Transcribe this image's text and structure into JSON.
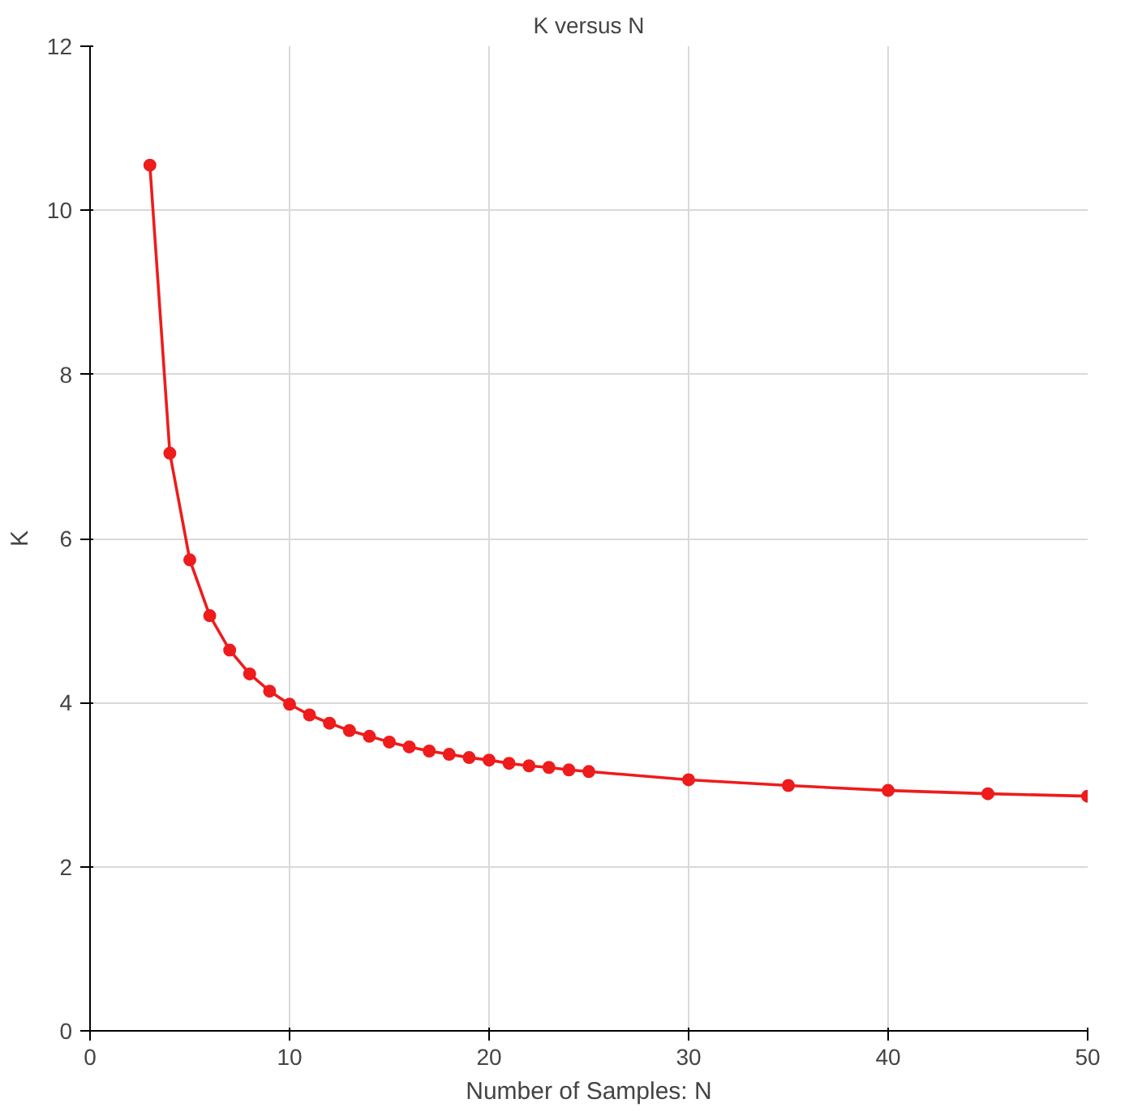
{
  "chart_data": {
    "type": "line",
    "title": "K versus N",
    "xlabel": "Number of Samples: N",
    "ylabel": "K",
    "x": [
      3,
      4,
      5,
      6,
      7,
      8,
      9,
      10,
      11,
      12,
      13,
      14,
      15,
      16,
      17,
      18,
      19,
      20,
      21,
      22,
      23,
      24,
      25,
      30,
      35,
      40,
      45,
      50
    ],
    "series": [
      {
        "color": "#ee1c1c",
        "values": [
          10.55,
          7.04,
          5.74,
          5.06,
          4.64,
          4.35,
          4.14,
          3.98,
          3.85,
          3.75,
          3.66,
          3.59,
          3.52,
          3.46,
          3.41,
          3.37,
          3.33,
          3.3,
          3.26,
          3.23,
          3.21,
          3.18,
          3.16,
          3.06,
          2.99,
          2.93,
          2.89,
          2.86
        ]
      }
    ],
    "xlim": [
      0,
      50
    ],
    "xticks": [
      0,
      10,
      20,
      30,
      40,
      50
    ],
    "ylim": [
      0,
      12
    ],
    "yticks": [
      0,
      2,
      4,
      6,
      8,
      10,
      12
    ],
    "grid": true,
    "marker": "circle",
    "line_style": "solid"
  }
}
